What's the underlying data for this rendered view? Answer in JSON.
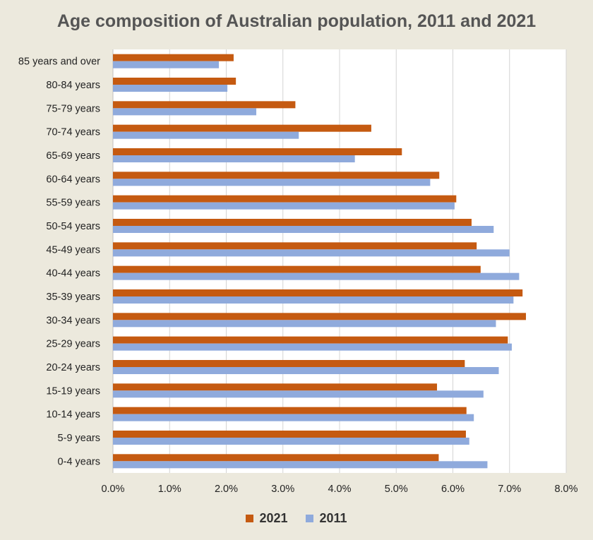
{
  "chart_data": {
    "type": "bar",
    "orientation": "horizontal",
    "title": "Age composition of Australian population, 2011 and 2021",
    "xlabel": "",
    "ylabel": "",
    "xlim": [
      0,
      8
    ],
    "x_ticks": [
      "0.0%",
      "1.0%",
      "2.0%",
      "3.0%",
      "4.0%",
      "5.0%",
      "6.0%",
      "7.0%",
      "8.0%"
    ],
    "grid": true,
    "legend_position": "bottom",
    "categories": [
      "85 years and over",
      "80-84 years",
      "75-79 years",
      "70-74 years",
      "65-69 years",
      "60-64 years",
      "55-59 years",
      "50-54 years",
      "45-49 years",
      "40-44 years",
      "35-39 years",
      "30-34 years",
      "25-29 years",
      "20-24 years",
      "15-19 years",
      "10-14 years",
      "5-9 years",
      "0-4 years"
    ],
    "series": [
      {
        "name": "2021",
        "color": "#c55a11",
        "values": [
          2.13,
          2.17,
          3.22,
          4.56,
          5.1,
          5.76,
          6.06,
          6.33,
          6.42,
          6.49,
          7.23,
          7.29,
          6.97,
          6.21,
          5.72,
          6.24,
          6.23,
          5.75
        ]
      },
      {
        "name": "2011",
        "color": "#8faadc",
        "values": [
          1.87,
          2.02,
          2.53,
          3.28,
          4.27,
          5.6,
          6.03,
          6.72,
          7.0,
          7.17,
          7.07,
          6.76,
          7.04,
          6.81,
          6.54,
          6.37,
          6.29,
          6.61
        ]
      }
    ]
  }
}
